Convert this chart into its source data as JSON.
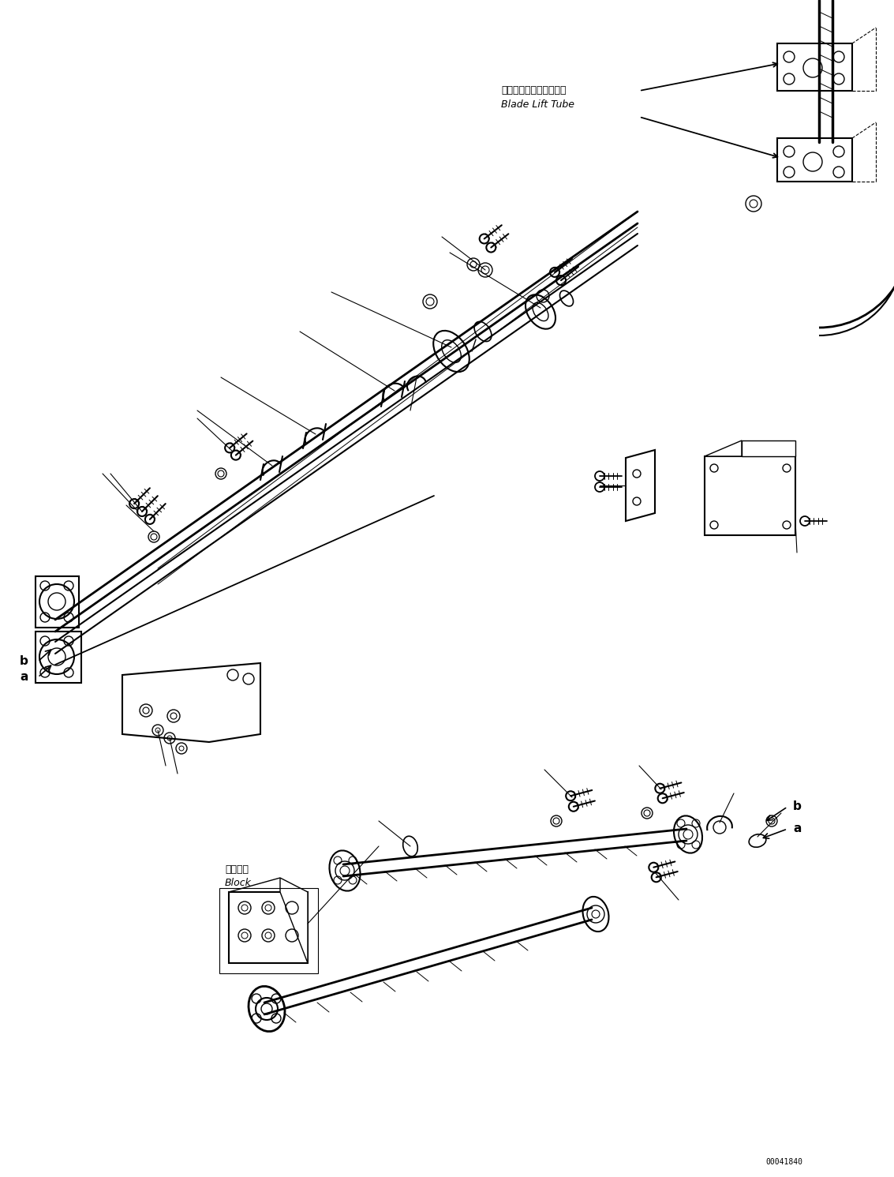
{
  "figure_width": 11.33,
  "figure_height": 14.91,
  "dpi": 100,
  "bg_color": "#ffffff",
  "line_color": "#000000",
  "label_blade_lift_tube_jp": "ブレードリフトチューブ",
  "label_blade_lift_tube_en": "Blade Lift Tube",
  "label_block_jp": "ブロック",
  "label_block_en": "Block",
  "label_a": "a",
  "label_b": "b",
  "part_number": "00041840"
}
